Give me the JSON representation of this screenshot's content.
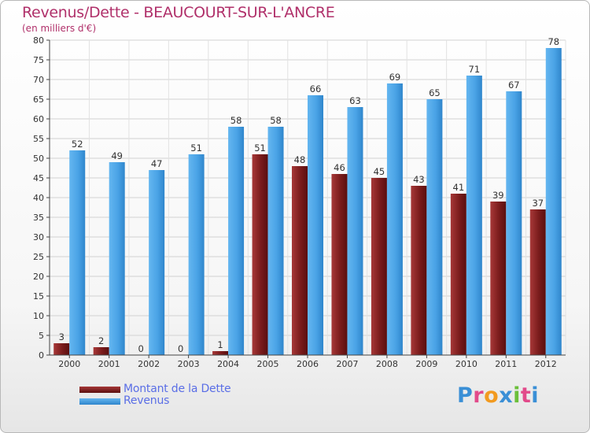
{
  "header": {
    "title": "Revenus/Dette - BEAUCOURT-SUR-L'ANCRE",
    "subtitle": "(en milliers d'€)"
  },
  "chart_data": {
    "type": "bar",
    "title": "Revenus/Dette - BEAUCOURT-SUR-L'ANCRE",
    "subtitle": "(en milliers d'€)",
    "xlabel": "",
    "ylabel": "",
    "ylim": [
      0,
      80
    ],
    "yticks": [
      0,
      5,
      10,
      15,
      20,
      25,
      30,
      35,
      40,
      45,
      50,
      55,
      60,
      65,
      70,
      75,
      80
    ],
    "grid": true,
    "legend_position": "bottom-left",
    "categories": [
      "2000",
      "2001",
      "2002",
      "2003",
      "2004",
      "2005",
      "2006",
      "2007",
      "2008",
      "2009",
      "2010",
      "2011",
      "2012"
    ],
    "series": [
      {
        "name": "Montant de la Dette",
        "color": "#7a1c1c",
        "values": [
          3,
          2,
          0,
          0,
          1,
          51,
          48,
          46,
          45,
          43,
          41,
          39,
          37
        ]
      },
      {
        "name": "Revenus",
        "color": "#4aa3e6",
        "values": [
          52,
          49,
          47,
          51,
          58,
          58,
          66,
          63,
          69,
          65,
          71,
          67,
          78
        ]
      }
    ]
  },
  "legend": {
    "items": [
      {
        "label": "Montant de la Dette",
        "color": "#7a1c1c"
      },
      {
        "label": "Revenus",
        "color": "#4aa3e6"
      }
    ]
  },
  "logo": {
    "letters": [
      "P",
      "r",
      "o",
      "x",
      "i",
      "t",
      "i"
    ],
    "colors": [
      "#3a8fd6",
      "#e24a8a",
      "#f29a1f",
      "#3a8fd6",
      "#6bbf3a",
      "#e24a8a",
      "#3a8fd6"
    ]
  }
}
